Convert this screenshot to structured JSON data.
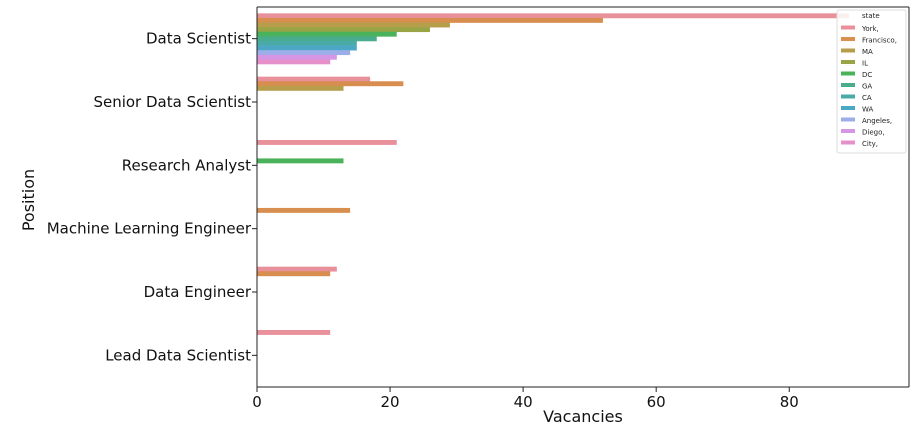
{
  "chart_data": {
    "type": "bar",
    "orientation": "horizontal",
    "xlabel": "Vacancies",
    "ylabel": "Position",
    "xlim": [
      0,
      98
    ],
    "xticks": [
      0,
      20,
      40,
      60,
      80
    ],
    "grid": false,
    "categories": [
      "Data Scientist",
      "Senior Data Scientist",
      "Research Analyst",
      "Machine Learning Engineer",
      "Data Engineer",
      "Lead Data Scientist"
    ],
    "legend": {
      "title": "state",
      "position": "top-right"
    },
    "series": [
      {
        "name": "York,",
        "color": "#e8919a",
        "values": [
          89,
          17,
          21,
          0,
          12,
          11
        ]
      },
      {
        "name": "Francisco,",
        "color": "#d88e4e",
        "values": [
          52,
          22,
          0,
          14,
          11,
          0
        ]
      },
      {
        "name": "MA",
        "color": "#b79e4a",
        "values": [
          29,
          13,
          0,
          0,
          0,
          0
        ]
      },
      {
        "name": "IL",
        "color": "#98a446",
        "values": [
          26,
          0,
          0,
          0,
          0,
          0
        ]
      },
      {
        "name": "DC",
        "color": "#4bb25c",
        "values": [
          21,
          0,
          13,
          0,
          0,
          0
        ]
      },
      {
        "name": "GA",
        "color": "#49ad8d",
        "values": [
          18,
          0,
          0,
          0,
          0,
          0
        ]
      },
      {
        "name": "CA",
        "color": "#4aaaa8",
        "values": [
          15,
          0,
          0,
          0,
          0,
          0
        ]
      },
      {
        "name": "WA",
        "color": "#4ca7c4",
        "values": [
          15,
          0,
          0,
          0,
          0,
          0
        ]
      },
      {
        "name": "Angeles,",
        "color": "#9caee8",
        "values": [
          14,
          0,
          0,
          0,
          0,
          0
        ]
      },
      {
        "name": "Diego,",
        "color": "#d596e6",
        "values": [
          12,
          0,
          0,
          0,
          0,
          0
        ]
      },
      {
        "name": "City,",
        "color": "#e58fcb",
        "values": [
          11,
          0,
          0,
          0,
          0,
          0
        ]
      }
    ]
  }
}
